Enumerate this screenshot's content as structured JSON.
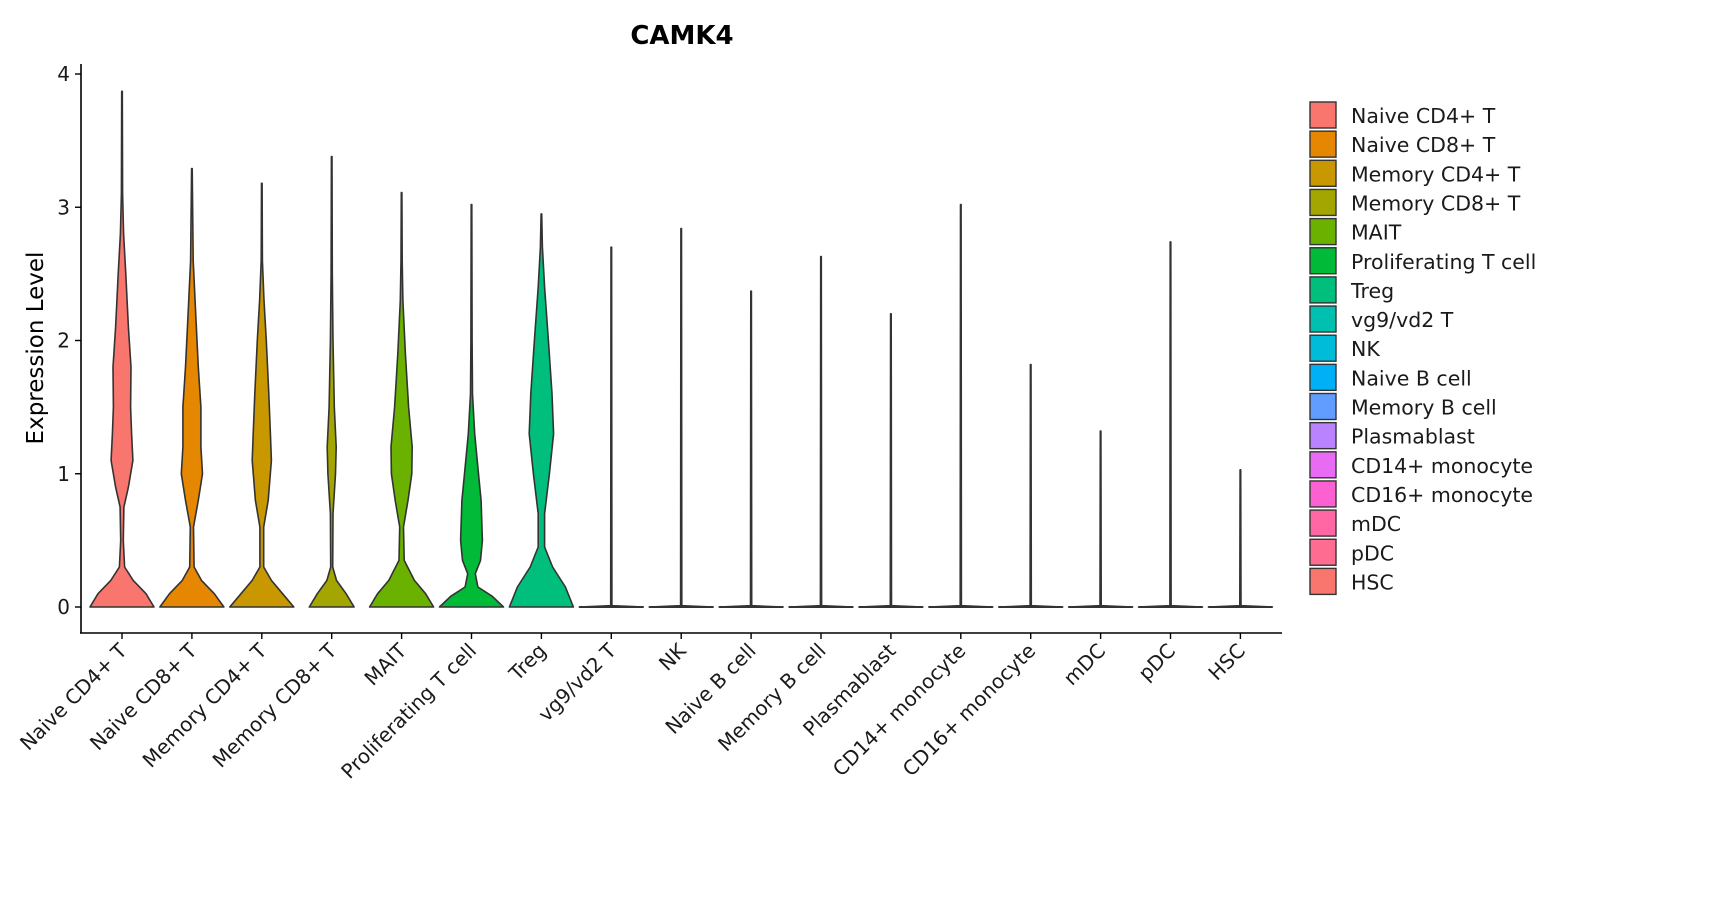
{
  "chart_data": {
    "type": "violin",
    "title": "CAMK4",
    "xlabel": "",
    "ylabel": "Expression Level",
    "ylim": [
      0,
      4
    ],
    "yticks": [
      "0",
      "1",
      "2",
      "3",
      "4"
    ],
    "grid": false,
    "legend_position": "right",
    "categories": [
      "Naive CD4+ T",
      "Naive CD8+ T",
      "Memory CD4+ T",
      "Memory CD8+ T",
      "MAIT",
      "Proliferating T cell",
      "Treg",
      "vg9/vd2 T",
      "NK",
      "Naive B cell",
      "Memory B cell",
      "Plasmablast",
      "CD14+ monocyte",
      "CD16+ monocyte",
      "mDC",
      "pDC",
      "HSC"
    ],
    "colors": [
      "#F8766D",
      "#E58700",
      "#C99800",
      "#A3A500",
      "#6BB100",
      "#00BA38",
      "#00BF7D",
      "#00C0AF",
      "#00BCD8",
      "#00B0F6",
      "#619CFF",
      "#B983FF",
      "#E76BF3",
      "#FD61D1",
      "#FF67A4",
      "#FF6C91",
      "#F8766D"
    ],
    "series": [
      {
        "name": "Naive CD4+ T",
        "max": 3.87,
        "density": [
          [
            0,
            1
          ],
          [
            0.1,
            0.75
          ],
          [
            0.2,
            0.35
          ],
          [
            0.3,
            0.08
          ],
          [
            0.5,
            0.04
          ],
          [
            0.75,
            0.06
          ],
          [
            0.9,
            0.2
          ],
          [
            1.1,
            0.34
          ],
          [
            1.3,
            0.3
          ],
          [
            1.5,
            0.27
          ],
          [
            1.8,
            0.28
          ],
          [
            2.1,
            0.2
          ],
          [
            2.5,
            0.12
          ],
          [
            2.8,
            0.05
          ],
          [
            3.1,
            0.02
          ],
          [
            3.87,
            0.01
          ]
        ]
      },
      {
        "name": "Naive CD8+ T",
        "max": 3.29,
        "density": [
          [
            0,
            1
          ],
          [
            0.1,
            0.7
          ],
          [
            0.2,
            0.3
          ],
          [
            0.3,
            0.07
          ],
          [
            0.6,
            0.05
          ],
          [
            0.8,
            0.2
          ],
          [
            1.0,
            0.33
          ],
          [
            1.2,
            0.28
          ],
          [
            1.5,
            0.28
          ],
          [
            1.8,
            0.2
          ],
          [
            2.2,
            0.12
          ],
          [
            2.6,
            0.04
          ],
          [
            3.29,
            0.01
          ]
        ]
      },
      {
        "name": "Memory CD4+ T",
        "max": 3.18,
        "density": [
          [
            0,
            1
          ],
          [
            0.1,
            0.65
          ],
          [
            0.2,
            0.3
          ],
          [
            0.3,
            0.06
          ],
          [
            0.6,
            0.06
          ],
          [
            0.8,
            0.2
          ],
          [
            1.1,
            0.3
          ],
          [
            1.3,
            0.27
          ],
          [
            1.6,
            0.22
          ],
          [
            2,
            0.14
          ],
          [
            2.3,
            0.07
          ],
          [
            2.6,
            0.02
          ],
          [
            3.18,
            0.01
          ]
        ]
      },
      {
        "name": "Memory CD8+ T",
        "max": 3.38,
        "density": [
          [
            0,
            0.7
          ],
          [
            0.1,
            0.45
          ],
          [
            0.2,
            0.15
          ],
          [
            0.3,
            0.03
          ],
          [
            0.7,
            0.04
          ],
          [
            1,
            0.12
          ],
          [
            1.2,
            0.14
          ],
          [
            1.5,
            0.08
          ],
          [
            2,
            0.04
          ],
          [
            2.5,
            0.02
          ],
          [
            3.38,
            0.01
          ]
        ]
      },
      {
        "name": "MAIT",
        "max": 3.11,
        "density": [
          [
            0,
            1
          ],
          [
            0.1,
            0.75
          ],
          [
            0.2,
            0.4
          ],
          [
            0.35,
            0.08
          ],
          [
            0.6,
            0.06
          ],
          [
            0.8,
            0.2
          ],
          [
            1,
            0.32
          ],
          [
            1.2,
            0.33
          ],
          [
            1.5,
            0.22
          ],
          [
            1.9,
            0.12
          ],
          [
            2.3,
            0.04
          ],
          [
            2.6,
            0.02
          ],
          [
            3.11,
            0.01
          ]
        ]
      },
      {
        "name": "Proliferating T cell",
        "max": 3.02,
        "density": [
          [
            0,
            1
          ],
          [
            0.08,
            0.65
          ],
          [
            0.15,
            0.2
          ],
          [
            0.25,
            0.12
          ],
          [
            0.35,
            0.28
          ],
          [
            0.5,
            0.34
          ],
          [
            0.8,
            0.3
          ],
          [
            1.0,
            0.22
          ],
          [
            1.3,
            0.1
          ],
          [
            1.6,
            0.03
          ],
          [
            2,
            0.02
          ],
          [
            3.02,
            0.01
          ]
        ]
      },
      {
        "name": "Treg",
        "max": 2.95,
        "density": [
          [
            0,
            1
          ],
          [
            0.15,
            0.75
          ],
          [
            0.3,
            0.35
          ],
          [
            0.45,
            0.1
          ],
          [
            0.7,
            0.1
          ],
          [
            1,
            0.25
          ],
          [
            1.3,
            0.38
          ],
          [
            1.6,
            0.33
          ],
          [
            2,
            0.22
          ],
          [
            2.4,
            0.1
          ],
          [
            2.7,
            0.03
          ],
          [
            2.95,
            0.01
          ]
        ]
      },
      {
        "name": "vg9/vd2 T",
        "max": 2.7,
        "density": [
          [
            0,
            1
          ],
          [
            0.01,
            0.02
          ],
          [
            2.7,
            0.01
          ]
        ]
      },
      {
        "name": "NK",
        "max": 2.84,
        "density": [
          [
            0,
            1
          ],
          [
            0.01,
            0.02
          ],
          [
            2.84,
            0.01
          ]
        ]
      },
      {
        "name": "Naive B cell",
        "max": 2.37,
        "density": [
          [
            0,
            1
          ],
          [
            0.01,
            0.02
          ],
          [
            2.37,
            0.01
          ]
        ]
      },
      {
        "name": "Memory B cell",
        "max": 2.63,
        "density": [
          [
            0,
            1
          ],
          [
            0.01,
            0.02
          ],
          [
            2.63,
            0.01
          ]
        ]
      },
      {
        "name": "Plasmablast",
        "max": 2.2,
        "density": [
          [
            0,
            1
          ],
          [
            0.01,
            0.02
          ],
          [
            2.2,
            0.01
          ]
        ]
      },
      {
        "name": "CD14+ monocyte",
        "max": 3.02,
        "density": [
          [
            0,
            1
          ],
          [
            0.01,
            0.02
          ],
          [
            3.02,
            0.01
          ]
        ]
      },
      {
        "name": "CD16+ monocyte",
        "max": 1.82,
        "density": [
          [
            0,
            1
          ],
          [
            0.01,
            0.02
          ],
          [
            1.82,
            0.01
          ]
        ]
      },
      {
        "name": "mDC",
        "max": 1.32,
        "density": [
          [
            0,
            1
          ],
          [
            0.01,
            0.02
          ],
          [
            1.32,
            0.01
          ]
        ]
      },
      {
        "name": "pDC",
        "max": 2.74,
        "density": [
          [
            0,
            1
          ],
          [
            0.01,
            0.02
          ],
          [
            2.74,
            0.01
          ]
        ]
      },
      {
        "name": "HSC",
        "max": 1.03,
        "density": [
          [
            0,
            1
          ],
          [
            0.01,
            0.02
          ],
          [
            1.03,
            0.01
          ]
        ]
      }
    ]
  }
}
